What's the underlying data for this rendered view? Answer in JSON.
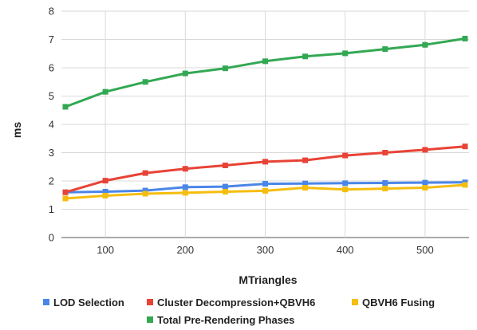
{
  "chart_data": {
    "type": "line",
    "title": "",
    "xlabel": "MTriangles",
    "ylabel": "ms",
    "xlim": [
      45,
      555
    ],
    "ylim": [
      0,
      8
    ],
    "x_ticks": [
      100,
      200,
      300,
      400,
      500
    ],
    "y_ticks": [
      0,
      1,
      2,
      3,
      4,
      5,
      6,
      7,
      8
    ],
    "grid": true,
    "legend_position": "bottom",
    "x": [
      50,
      100,
      150,
      200,
      250,
      300,
      350,
      400,
      450,
      500,
      550
    ],
    "series": [
      {
        "name": "LOD Selection",
        "color": "#4a86e8",
        "values": [
          1.6,
          1.62,
          1.66,
          1.78,
          1.8,
          1.9,
          1.91,
          1.92,
          1.93,
          1.94,
          1.95
        ]
      },
      {
        "name": "Cluster Decompression+QBVH6",
        "color": "#e84336",
        "values": [
          1.6,
          2.01,
          2.28,
          2.43,
          2.55,
          2.68,
          2.73,
          2.9,
          3.0,
          3.1,
          3.22
        ]
      },
      {
        "name": "QBVH6 Fusing",
        "color": "#f5bd0e",
        "values": [
          1.38,
          1.48,
          1.55,
          1.58,
          1.62,
          1.65,
          1.76,
          1.7,
          1.73,
          1.76,
          1.86
        ]
      },
      {
        "name": "Total Pre-Rendering Phases",
        "color": "#33a853",
        "values": [
          4.62,
          5.15,
          5.5,
          5.8,
          5.98,
          6.23,
          6.4,
          6.51,
          6.66,
          6.81,
          7.03
        ]
      }
    ]
  }
}
